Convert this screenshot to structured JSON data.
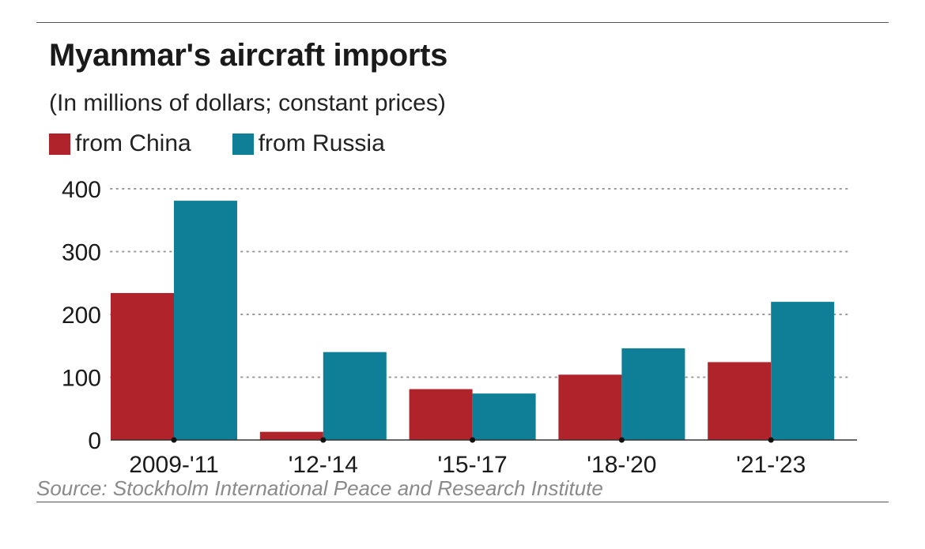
{
  "title": "Myanmar's aircraft imports",
  "subtitle": "(In millions of dollars; constant prices)",
  "source": "Source: Stockholm International Peace and Research Institute",
  "colors": {
    "china": "#b0232a",
    "russia": "#0e7f97"
  },
  "chart_data": {
    "type": "bar",
    "categories": [
      "2009-'11",
      "'12-'14",
      "'15-'17",
      "'18-'20",
      "'21-'23"
    ],
    "series": [
      {
        "name": "from China",
        "values": [
          234,
          13,
          81,
          104,
          124
        ]
      },
      {
        "name": "from Russia",
        "values": [
          381,
          140,
          74,
          146,
          220
        ]
      }
    ],
    "ylim": [
      0,
      400
    ],
    "yticks": [
      0,
      100,
      200,
      300,
      400
    ],
    "grid": true,
    "legend": "top-left"
  }
}
